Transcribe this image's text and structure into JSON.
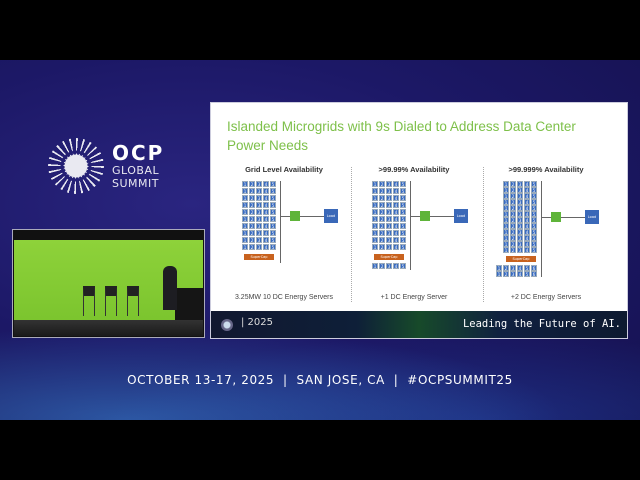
{
  "branding": {
    "logo_line1": "OCP",
    "logo_line2": "GLOBAL",
    "logo_line3": "SUMMIT"
  },
  "slide": {
    "title": "Islanded Microgrids with 9s Dialed to Address Data Center Power Needs",
    "columns": [
      {
        "heading": "Grid Level Availability",
        "caption": "3.25MW 10 DC Energy Servers",
        "grid_rows": 10,
        "extra_rows": 0,
        "extra_cols": 5,
        "supercap": "SuperCap",
        "node": "1",
        "load": "Load"
      },
      {
        "heading": ">99.99% Availability",
        "caption": "+1 DC Energy Server",
        "grid_rows": 10,
        "extra_rows": 1,
        "extra_cols": 5,
        "supercap": "SuperCap",
        "node": "1",
        "load": "Load"
      },
      {
        "heading": ">99.999% Availability",
        "caption": "+2 DC Energy Servers",
        "grid_rows": 12,
        "extra_rows": 2,
        "extra_cols": 6,
        "supercap": "SuperCap",
        "node": "1",
        "load": "Load"
      }
    ],
    "footer": {
      "year": "| 2025",
      "tagline": "Leading the Future of AI."
    }
  },
  "event": {
    "dates": "OCTOBER 13-17, 2025",
    "sep": "|",
    "location": "SAN JOSE, CA",
    "hashtag": "#OCPSUMMIT25"
  }
}
